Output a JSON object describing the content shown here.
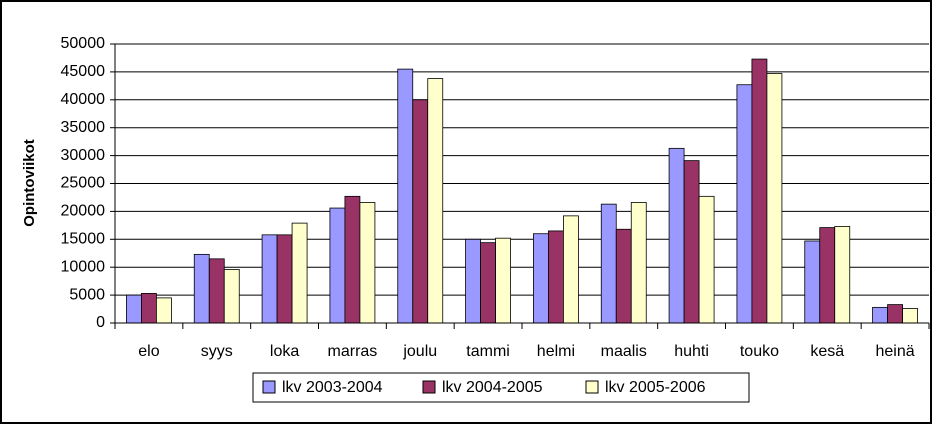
{
  "chart_data": {
    "type": "bar",
    "y_label": "Opintoviikot",
    "categories": [
      "elo",
      "syys",
      "loka",
      "marras",
      "joulu",
      "tammi",
      "helmi",
      "maalis",
      "huhti",
      "touko",
      "kesä",
      "heinä"
    ],
    "series": [
      {
        "name": "lkv 2003-2004",
        "color": "#9999ff",
        "values": [
          5000,
          12300,
          15800,
          20600,
          45500,
          15000,
          16000,
          21300,
          31300,
          42700,
          14700,
          2800
        ]
      },
      {
        "name": "lkv 2004-2005",
        "color": "#993366",
        "values": [
          5300,
          11500,
          15800,
          22700,
          40000,
          14400,
          16500,
          16800,
          29100,
          47300,
          17100,
          3300
        ]
      },
      {
        "name": "lkv 2005-2006",
        "color": "#ffffcc",
        "values": [
          4500,
          9600,
          17900,
          21600,
          43800,
          15200,
          19200,
          21600,
          22700,
          44700,
          17300,
          2600
        ]
      }
    ],
    "ylim": [
      0,
      50000
    ],
    "yticks": [
      0,
      5000,
      10000,
      15000,
      20000,
      25000,
      30000,
      35000,
      40000,
      45000,
      50000
    ],
    "grid": true
  }
}
